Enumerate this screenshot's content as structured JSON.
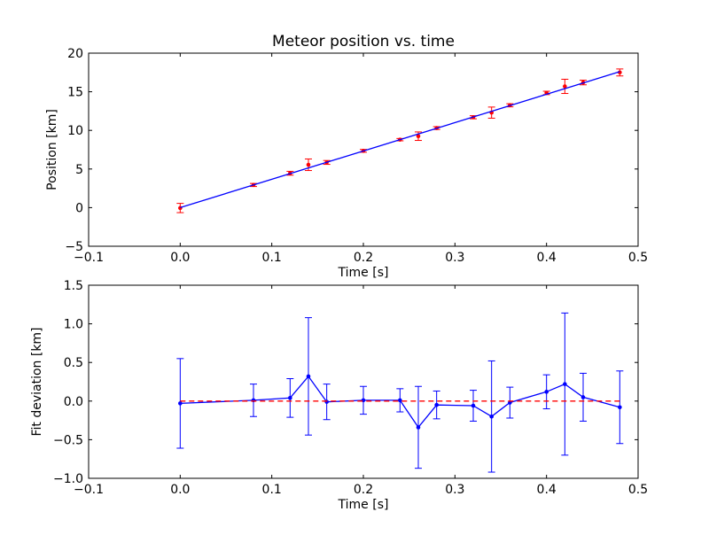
{
  "chart_data": [
    {
      "type": "scatter",
      "title": "Meteor position vs. time",
      "xlabel": "Time [s]",
      "ylabel": "Position [km]",
      "xlim": [
        -0.1,
        0.5
      ],
      "ylim": [
        -5,
        20
      ],
      "xticks": [
        "−0.1",
        "0.0",
        "0.1",
        "0.2",
        "0.3",
        "0.4",
        "0.5"
      ],
      "yticks": [
        "−5",
        "0",
        "5",
        "10",
        "15",
        "20"
      ],
      "grid": false,
      "series": [
        {
          "kind": "errorbar-points",
          "color": "#ff0000",
          "x": [
            0.0,
            0.08,
            0.12,
            0.14,
            0.16,
            0.2,
            0.24,
            0.26,
            0.28,
            0.32,
            0.34,
            0.36,
            0.4,
            0.42,
            0.44,
            0.48
          ],
          "y": [
            -0.05,
            2.93,
            4.45,
            5.55,
            5.85,
            7.35,
            8.8,
            9.25,
            10.3,
            11.7,
            12.3,
            13.25,
            14.85,
            15.7,
            16.2,
            17.5
          ],
          "err": [
            0.6,
            0.2,
            0.25,
            0.75,
            0.25,
            0.18,
            0.15,
            0.55,
            0.18,
            0.2,
            0.72,
            0.2,
            0.22,
            0.92,
            0.3,
            0.45
          ]
        },
        {
          "kind": "fit-line",
          "color": "#0000ff",
          "x": [
            0.0,
            0.48
          ],
          "y": [
            0.0,
            17.6
          ]
        }
      ]
    },
    {
      "type": "line",
      "xlabel": "Time [s]",
      "ylabel": "Fit deviation [km]",
      "xlim": [
        -0.1,
        0.5
      ],
      "ylim": [
        -1.0,
        1.5
      ],
      "xticks": [
        "−0.1",
        "0.0",
        "0.1",
        "0.2",
        "0.3",
        "0.4",
        "0.5"
      ],
      "yticks": [
        "−1.0",
        "−0.5",
        "0.0",
        "0.5",
        "1.0",
        "1.5"
      ],
      "grid": false,
      "series": [
        {
          "kind": "errorbar-line",
          "color": "#0000ff",
          "x": [
            0.0,
            0.08,
            0.12,
            0.14,
            0.16,
            0.2,
            0.24,
            0.26,
            0.28,
            0.32,
            0.34,
            0.36,
            0.4,
            0.42,
            0.44,
            0.48
          ],
          "y": [
            -0.03,
            0.01,
            0.04,
            0.32,
            -0.01,
            0.01,
            0.01,
            -0.34,
            -0.05,
            -0.06,
            -0.2,
            -0.02,
            0.12,
            0.22,
            0.05,
            -0.08
          ],
          "err": [
            0.58,
            0.21,
            0.25,
            0.76,
            0.23,
            0.18,
            0.15,
            0.53,
            0.18,
            0.2,
            0.72,
            0.2,
            0.22,
            0.92,
            0.31,
            0.47
          ]
        },
        {
          "kind": "reference-line",
          "color": "#ff0000",
          "dashed": true,
          "x": [
            0.0,
            0.48
          ],
          "y": [
            0.0,
            0.0
          ]
        }
      ]
    }
  ]
}
